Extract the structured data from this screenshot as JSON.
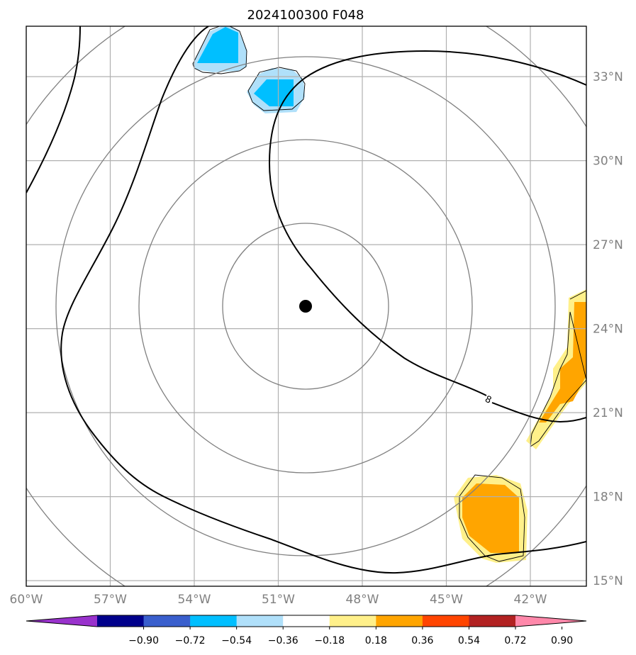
{
  "title": "2024100300 F048",
  "map": {
    "lon_range": [
      -60,
      -40
    ],
    "lat_range": [
      14.8,
      34.8
    ],
    "lon_ticks": [
      {
        "value": -60,
        "label": "60°W"
      },
      {
        "value": -57,
        "label": "57°W"
      },
      {
        "value": -54,
        "label": "54°W"
      },
      {
        "value": -51,
        "label": "51°W"
      },
      {
        "value": -48,
        "label": "48°W"
      },
      {
        "value": -45,
        "label": "45°W"
      },
      {
        "value": -42,
        "label": "42°W"
      }
    ],
    "lat_ticks": [
      {
        "value": 33,
        "label": "33°N"
      },
      {
        "value": 30,
        "label": "30°N"
      },
      {
        "value": 27,
        "label": "27°N"
      },
      {
        "value": 24,
        "label": "24°N"
      },
      {
        "value": 21,
        "label": "21°N"
      },
      {
        "value": 18,
        "label": "18°N"
      },
      {
        "value": 15,
        "label": "15°N"
      }
    ],
    "grid": true,
    "center_marker": {
      "lon": -50.0,
      "lat": 24.8
    },
    "range_rings_deg": [
      3,
      6,
      9,
      12
    ],
    "contour_label": "8",
    "colors": {
      "grid": "#b0b0b0",
      "rings": "#808080",
      "contour": "#000000"
    }
  },
  "colorbar": {
    "tick_labels": [
      "−0.90",
      "−0.72",
      "−0.54",
      "−0.36",
      "−0.18",
      "0.18",
      "0.36",
      "0.54",
      "0.72",
      "0.90"
    ],
    "bins": [
      {
        "color": "#9932cc"
      },
      {
        "color": "#00008b"
      },
      {
        "color": "#3a5fcd"
      },
      {
        "color": "#00bfff"
      },
      {
        "color": "#b0e0fa"
      },
      {
        "color": "#ffffff"
      },
      {
        "color": "#fff08a"
      },
      {
        "color": "#ffa500"
      },
      {
        "color": "#ff4500"
      },
      {
        "color": "#b22222"
      },
      {
        "color": "#ff88aa"
      }
    ]
  }
}
